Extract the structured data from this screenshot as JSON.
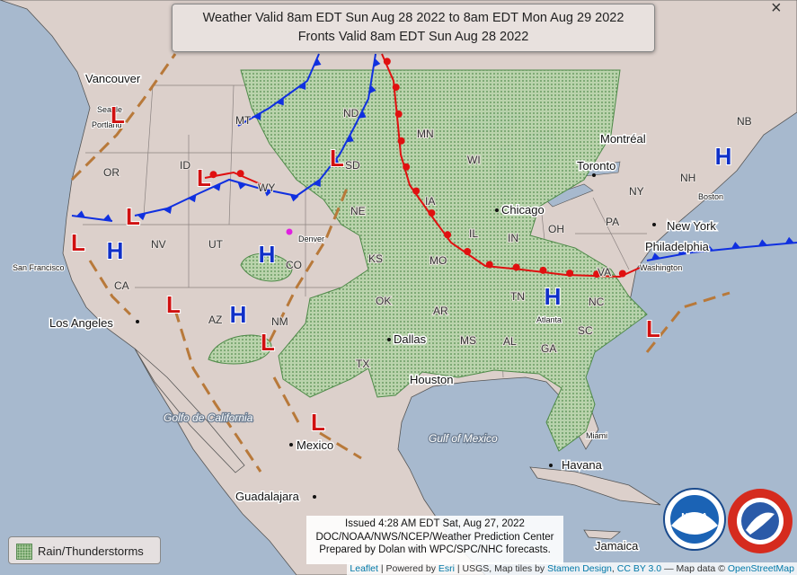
{
  "header": {
    "title_lines": [
      "Weather Valid 8am EDT Sun Aug 28 2022 to 8am EDT Mon Aug 29 2022",
      "Fronts Valid 8am EDT Sun Aug 28 2022"
    ],
    "close": "×"
  },
  "legend": {
    "label": "Rain/Thunderstorms"
  },
  "issued": [
    "Issued 4:28 AM EDT Sat, Aug 27, 2022",
    "DOC/NOAA/NWS/NCEP/Weather Prediction Center",
    "Prepared by Dolan with WPC/SPC/NHC forecasts."
  ],
  "attribution": {
    "links": [
      "Leaflet",
      "Esri",
      "Stamen Design",
      "CC BY 3.0",
      "OpenStreetMap"
    ],
    "texts": [
      "|",
      "Powered by",
      "| USGS, Map tiles by",
      ",",
      "— Map data ©"
    ]
  },
  "cities": [
    "Vancouver",
    "Los Angeles",
    "Dallas",
    "Houston",
    "Chicago",
    "Toronto",
    "Montréal",
    "New York",
    "Philadelphia",
    "Havana",
    "Mexico",
    "Guadalajara",
    "Jamaica"
  ],
  "small_cities": [
    "Seattle",
    "Portland",
    "San Francisco",
    "Denver",
    "Boston",
    "Washington",
    "Atlanta",
    "Miami"
  ],
  "states": [
    "MT",
    "ND",
    "MN",
    "WI",
    "ID",
    "OR",
    "SD",
    "WY",
    "NE",
    "IA",
    "NV",
    "UT",
    "CO",
    "KS",
    "MO",
    "IL",
    "IN",
    "OH",
    "PA",
    "NY",
    "CA",
    "AZ",
    "NM",
    "OK",
    "AR",
    "TN",
    "VA",
    "NC",
    "SC",
    "GA",
    "AL",
    "MS",
    "TX",
    "NB",
    "NH"
  ],
  "water_labels": [
    "Golfo de California",
    "Gulf of Mexico"
  ],
  "pressure_centers": [
    "L",
    "L",
    "L",
    "L",
    "L",
    "H",
    "H",
    "H",
    "L",
    "L",
    "L",
    "H",
    "H",
    "L"
  ],
  "logos": [
    "NOAA"
  ]
}
